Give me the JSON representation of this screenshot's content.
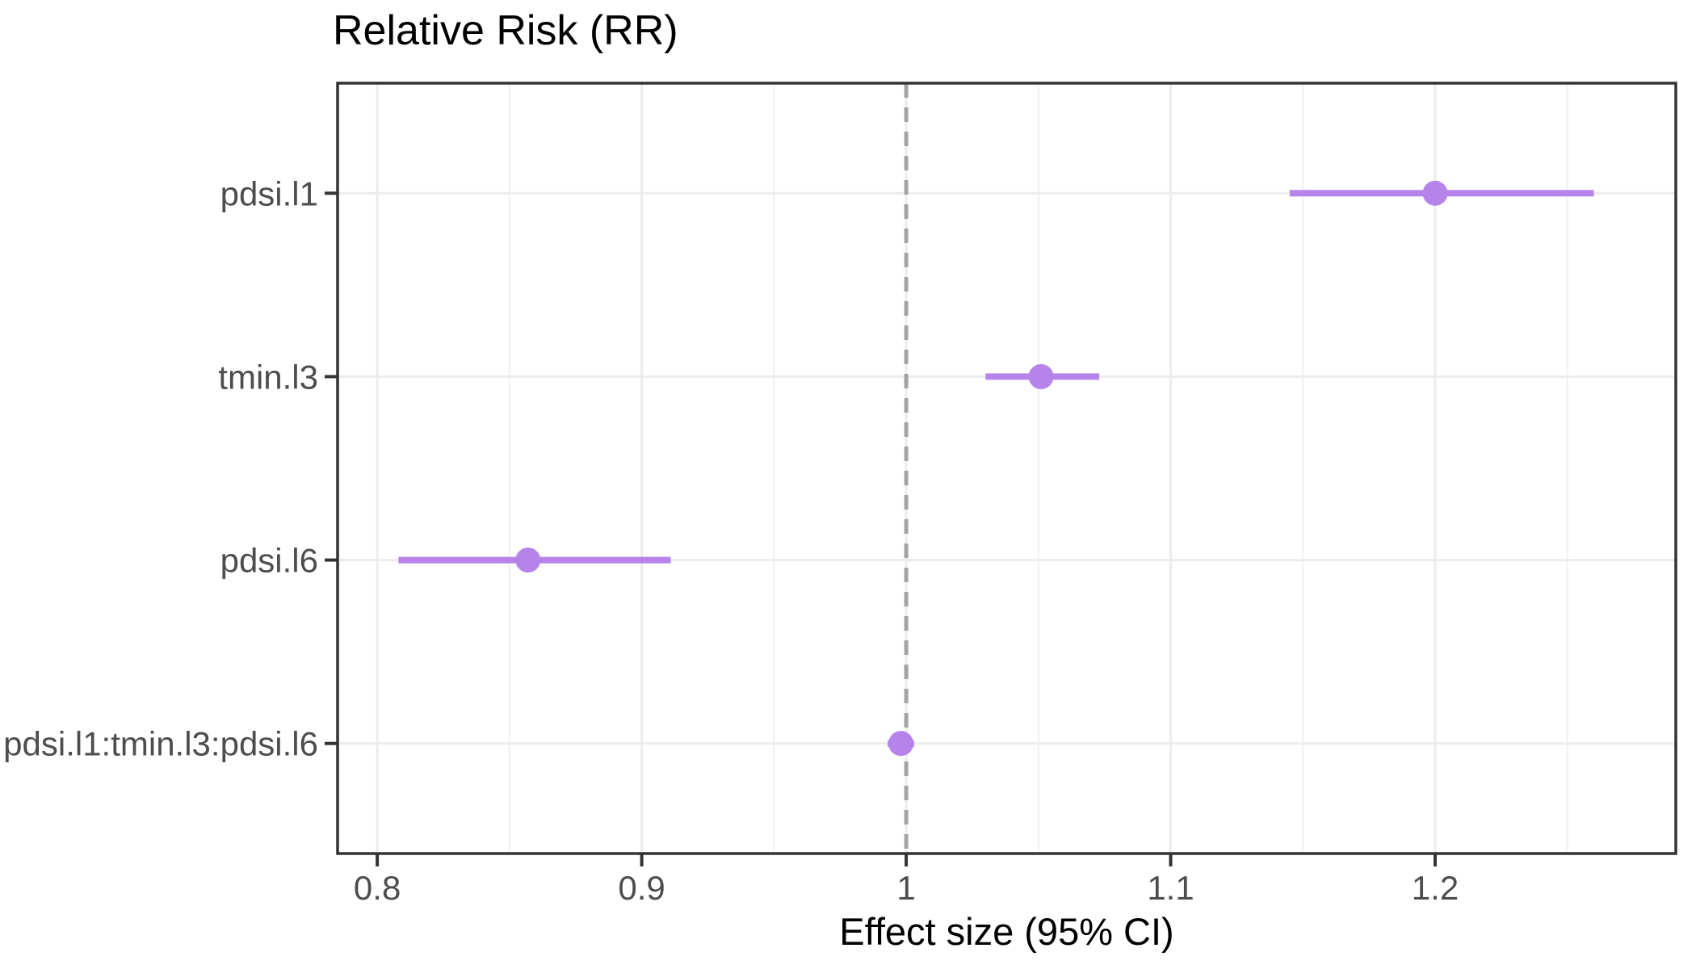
{
  "chart_data": {
    "type": "scatter",
    "subtype": "forest-dot-whisker",
    "title": "Relative Risk (RR)",
    "xlabel": "Effect size (95% CI)",
    "ylabel": "",
    "categories": [
      "pdsi.l1",
      "tmin.l3",
      "pdsi.l6",
      "pdsi.l1:tmin.l3:pdsi.l6"
    ],
    "series": [
      {
        "name": "pdsi.l1",
        "estimate": 1.2,
        "ci_low": 1.145,
        "ci_high": 1.26
      },
      {
        "name": "tmin.l3",
        "estimate": 1.051,
        "ci_low": 1.03,
        "ci_high": 1.073
      },
      {
        "name": "pdsi.l6",
        "estimate": 0.857,
        "ci_low": 0.808,
        "ci_high": 0.911
      },
      {
        "name": "pdsi.l1:tmin.l3:pdsi.l6",
        "estimate": 0.998,
        "ci_low": 0.993,
        "ci_high": 1.003
      }
    ],
    "x_ticks": [
      0.8,
      0.9,
      1,
      1.1,
      1.2
    ],
    "x_tick_labels": [
      "0.8",
      "0.9",
      "1",
      "1.1",
      "1.2"
    ],
    "x_minor_ticks": [
      0.85,
      0.95,
      1.05,
      1.15,
      1.25
    ],
    "xlim": [
      0.785,
      1.291
    ],
    "reference_line_x": 1,
    "grid": true,
    "legend": "none",
    "colors": {
      "point": "#B583EA",
      "ci_line": "#B583EA",
      "reference_line": "#A3A3A3",
      "grid_major": "#ECECEC",
      "grid_minor": "#F3F3F3",
      "panel_border": "#333333",
      "tick_mark": "#333333",
      "axis_text": "#4D4D4D",
      "title_text": "#000000"
    }
  }
}
